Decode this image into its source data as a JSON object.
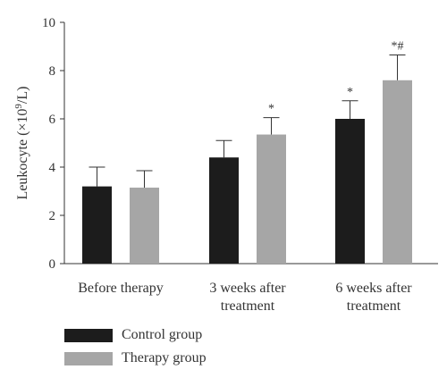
{
  "chart_data": {
    "type": "bar",
    "title": "",
    "xlabel": "",
    "ylabel": "Leukocyte (×10⁹/L)",
    "ylim": [
      0,
      10
    ],
    "yticks": [
      0,
      2,
      4,
      6,
      8,
      10
    ],
    "categories": [
      [
        "Before therapy"
      ],
      [
        "3 weeks after",
        "treatment"
      ],
      [
        "6 weeks after",
        "treatment"
      ]
    ],
    "series": [
      {
        "name": "Control group",
        "color": "#1c1c1c",
        "values": [
          3.2,
          4.4,
          6.0
        ],
        "errors": [
          0.8,
          0.7,
          0.75
        ],
        "annotations": [
          "",
          "",
          "*"
        ]
      },
      {
        "name": "Therapy group",
        "color": "#a6a6a6",
        "values": [
          3.15,
          5.35,
          7.6
        ],
        "errors": [
          0.7,
          0.7,
          1.05
        ],
        "annotations": [
          "",
          "*",
          "*#"
        ]
      }
    ],
    "grid": false,
    "legend_position": "bottom-left"
  }
}
